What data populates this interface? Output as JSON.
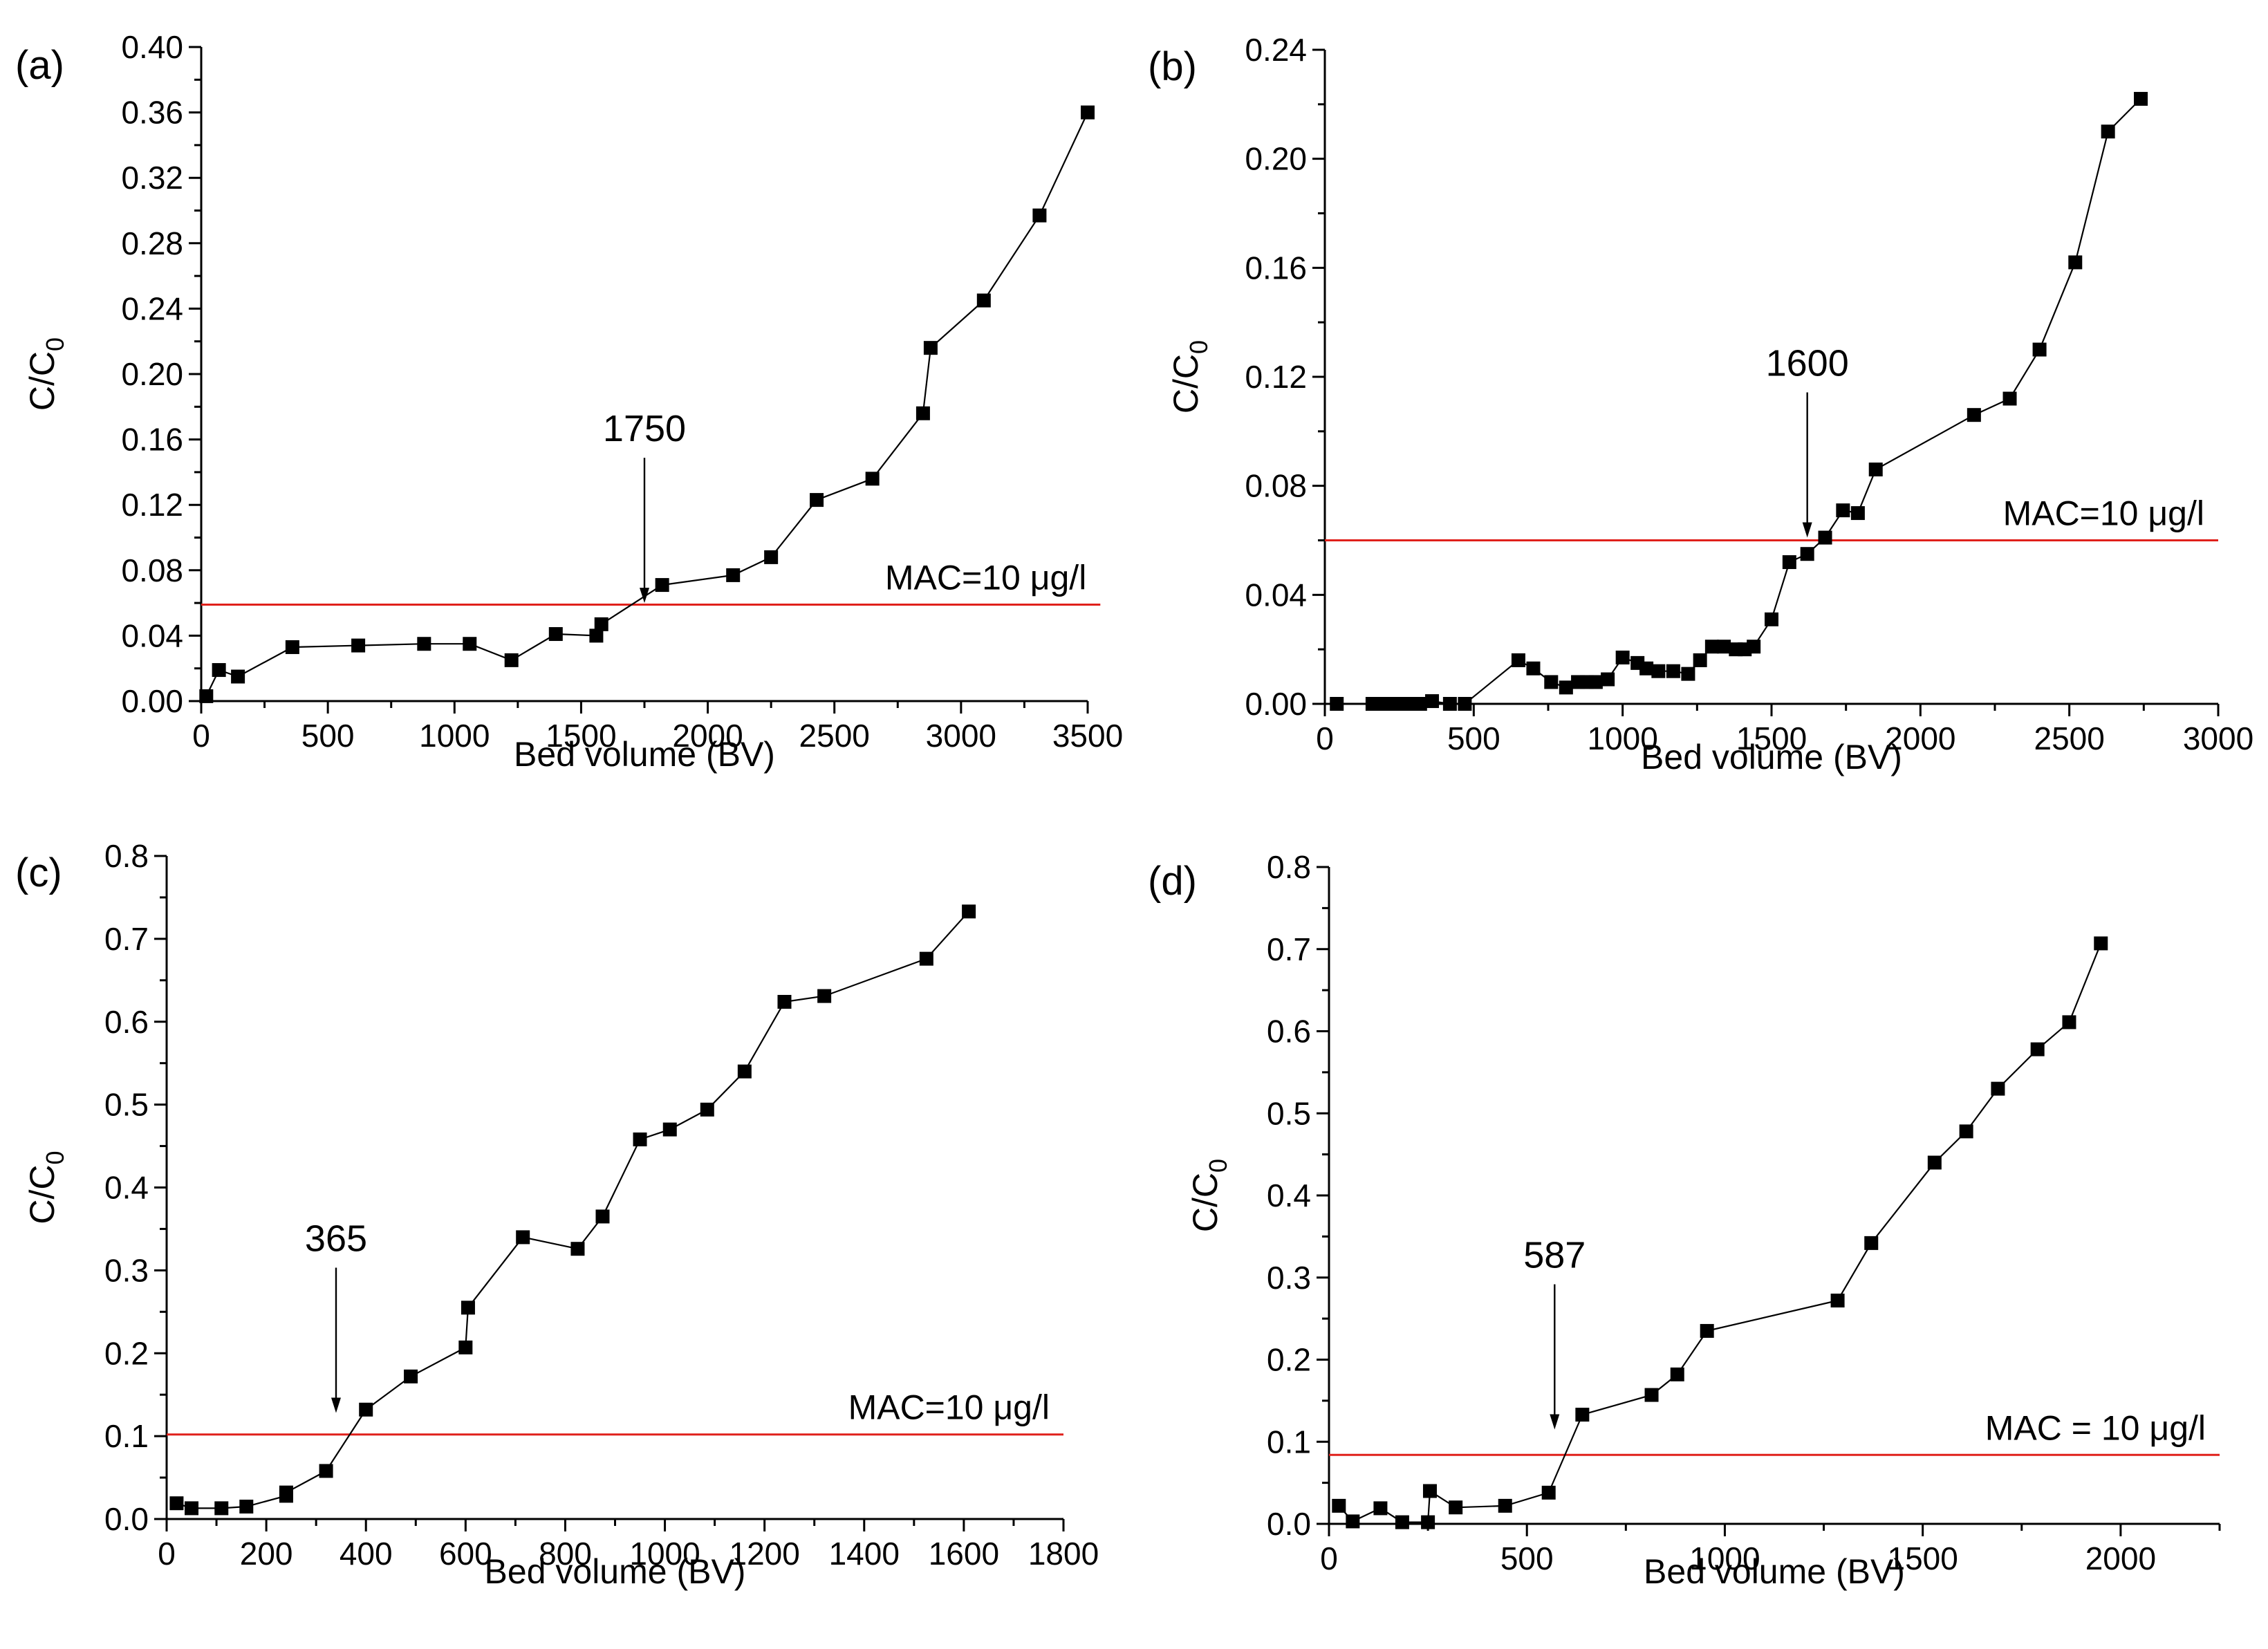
{
  "colors": {
    "mac_line": "#e0201b",
    "series": "#000000"
  },
  "chart_data": [
    {
      "panel_label": "(a)",
      "type": "line",
      "xlabel": "Bed volume (BV)",
      "ylabel_main": "C/C",
      "ylabel_sub": "0",
      "xlim": [
        0,
        3500
      ],
      "ylim": [
        0,
        0.4
      ],
      "xticks": [
        0,
        500,
        1000,
        1500,
        2000,
        2500,
        3000,
        3500
      ],
      "yticks": [
        0.0,
        0.04,
        0.08,
        0.12,
        0.16,
        0.2,
        0.24,
        0.28,
        0.32,
        0.36,
        0.4
      ],
      "xtick_labels": [
        "0",
        "500",
        "1000",
        "1500",
        "2000",
        "2500",
        "3000",
        "3500"
      ],
      "ytick_labels": [
        "0.00",
        "0.04",
        "0.08",
        "0.12",
        "0.16",
        "0.20",
        "0.24",
        "0.28",
        "0.32",
        "0.36",
        "0.40"
      ],
      "x": [
        20,
        70,
        145,
        360,
        620,
        880,
        1060,
        1225,
        1400,
        1560,
        1580,
        1820,
        2100,
        2250,
        2430,
        2650,
        2850,
        2880,
        3090,
        3310,
        3500
      ],
      "y": [
        0.003,
        0.019,
        0.015,
        0.033,
        0.034,
        0.035,
        0.035,
        0.025,
        0.041,
        0.04,
        0.047,
        0.071,
        0.077,
        0.088,
        0.123,
        0.136,
        0.176,
        0.216,
        0.245,
        0.297,
        0.36
      ],
      "mac_value": 0.059,
      "mac_label": "MAC=10 μg/l",
      "mac_x_range": [
        0,
        3550
      ],
      "annotation": {
        "text": "1750",
        "x": 1750,
        "y": 0.06
      }
    },
    {
      "panel_label": "(b)",
      "type": "line",
      "xlabel": "Bed volume (BV)",
      "ylabel_main": "C/C",
      "ylabel_sub": "0",
      "xlim": [
        0,
        3000
      ],
      "ylim": [
        0,
        0.24
      ],
      "xticks": [
        0,
        500,
        1000,
        1500,
        2000,
        2500,
        3000
      ],
      "yticks": [
        0.0,
        0.04,
        0.08,
        0.12,
        0.16,
        0.2,
        0.24
      ],
      "xtick_labels": [
        "0",
        "500",
        "1000",
        "1500",
        "2000",
        "2500",
        "3000"
      ],
      "ytick_labels": [
        "0.00",
        "0.04",
        "0.08",
        "0.12",
        "0.16",
        "0.20",
        "0.24"
      ],
      "x": [
        40,
        160,
        200,
        230,
        260,
        290,
        320,
        360,
        420,
        470,
        650,
        700,
        760,
        810,
        850,
        880,
        910,
        950,
        1000,
        1050,
        1080,
        1120,
        1170,
        1220,
        1260,
        1300,
        1340,
        1380,
        1410,
        1440,
        1500,
        1560,
        1620,
        1680,
        1740,
        1790,
        1850,
        2180,
        2300,
        2400,
        2520,
        2630,
        2740
      ],
      "y": [
        0.0,
        0.0,
        0.0,
        0.0,
        0.0,
        0.0,
        0.0,
        0.001,
        0.0,
        0.0,
        0.016,
        0.013,
        0.008,
        0.006,
        0.008,
        0.008,
        0.008,
        0.009,
        0.017,
        0.015,
        0.013,
        0.012,
        0.012,
        0.011,
        0.016,
        0.021,
        0.021,
        0.02,
        0.02,
        0.021,
        0.031,
        0.052,
        0.055,
        0.061,
        0.071,
        0.07,
        0.086,
        0.106,
        0.112,
        0.13,
        0.162,
        0.21,
        0.222
      ],
      "mac_value": 0.06,
      "mac_label": "MAC=10 μg/l",
      "mac_x_range": [
        0,
        3000
      ],
      "annotation": {
        "text": "1600",
        "x": 1620,
        "y": 0.061
      }
    },
    {
      "panel_label": "(c)",
      "type": "line",
      "xlabel": "Bed volume (BV)",
      "ylabel_main": "C/C",
      "ylabel_sub": "0",
      "xlim": [
        0,
        1800
      ],
      "ylim": [
        0,
        0.8
      ],
      "xticks": [
        0,
        200,
        400,
        600,
        800,
        1000,
        1200,
        1400,
        1600,
        1800
      ],
      "yticks": [
        0.0,
        0.1,
        0.2,
        0.3,
        0.4,
        0.5,
        0.6,
        0.7,
        0.8
      ],
      "xtick_labels": [
        "0",
        "200",
        "400",
        "600",
        "800",
        "1000",
        "1200",
        "1400",
        "1600",
        "1800"
      ],
      "ytick_labels": [
        "0.0",
        "0.1",
        "0.2",
        "0.3",
        "0.4",
        "0.5",
        "0.6",
        "0.7",
        "0.8"
      ],
      "x": [
        20,
        50,
        110,
        160,
        240,
        240,
        320,
        400,
        490,
        600,
        605,
        715,
        825,
        875,
        950,
        1010,
        1085,
        1160,
        1240,
        1320,
        1525,
        1610
      ],
      "y": [
        0.019,
        0.013,
        0.013,
        0.015,
        0.028,
        0.032,
        0.058,
        0.132,
        0.172,
        0.207,
        0.255,
        0.34,
        0.326,
        0.365,
        0.458,
        0.47,
        0.494,
        0.54,
        0.624,
        0.631,
        0.676,
        0.733
      ],
      "mac_value": 0.102,
      "mac_label": "MAC=10 μg/l",
      "mac_x_range": [
        0,
        1800
      ],
      "annotation": {
        "text": "365",
        "x": 340,
        "y": 0.128
      }
    },
    {
      "panel_label": "(d)",
      "type": "line",
      "xlabel": "Bed volume (BV)",
      "ylabel_main": "C/C",
      "ylabel_sub": "0",
      "xlim": [
        0,
        2250
      ],
      "ylim": [
        0,
        0.8
      ],
      "xticks": [
        0,
        500,
        1000,
        1500,
        2000
      ],
      "yticks": [
        0.0,
        0.1,
        0.2,
        0.3,
        0.4,
        0.5,
        0.6,
        0.7,
        0.8
      ],
      "xtick_labels": [
        "0",
        "500",
        "1000",
        "1500",
        "2000"
      ],
      "ytick_labels": [
        "0.0",
        "0.1",
        "0.2",
        "0.3",
        "0.4",
        "0.5",
        "0.6",
        "0.7",
        "0.8"
      ],
      "x": [
        25,
        60,
        130,
        185,
        250,
        255,
        320,
        445,
        555,
        640,
        815,
        880,
        955,
        1285,
        1370,
        1530,
        1610,
        1690,
        1790,
        1870,
        1950
      ],
      "y": [
        0.022,
        0.003,
        0.019,
        0.002,
        0.002,
        0.04,
        0.02,
        0.022,
        0.038,
        0.133,
        0.157,
        0.182,
        0.235,
        0.272,
        0.342,
        0.44,
        0.478,
        0.53,
        0.578,
        0.611,
        0.707
      ],
      "mac_value": 0.084,
      "mac_label": "MAC = 10 μg/l",
      "mac_x_range": [
        0,
        2250
      ],
      "annotation": {
        "text": "587",
        "x": 570,
        "y": 0.115
      }
    }
  ]
}
